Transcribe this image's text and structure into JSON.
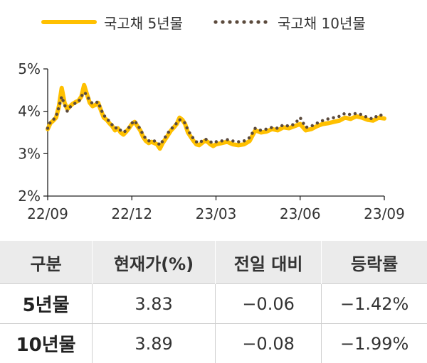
{
  "legend": {
    "series1": "국고채 5년물",
    "series2": "국고채 10년물"
  },
  "colors": {
    "series1": "#FFC000",
    "series2": "#5B4A3C"
  },
  "chart_data": {
    "type": "line",
    "x_ticks": [
      "22/09",
      "22/12",
      "23/03",
      "23/06",
      "23/09"
    ],
    "y_ticks": [
      "2%",
      "3%",
      "4%",
      "5%"
    ],
    "ylim": [
      2,
      5
    ],
    "xlim": [
      0,
      12
    ],
    "grid": false,
    "legend": "top",
    "series": [
      {
        "name": "국고채 5년물",
        "style": "solid",
        "x": [
          0,
          0.1,
          0.2,
          0.3,
          0.4,
          0.5,
          0.6,
          0.7,
          0.8,
          0.9,
          1.0,
          1.1,
          1.2,
          1.3,
          1.4,
          1.5,
          1.6,
          1.7,
          1.8,
          1.9,
          2.0,
          2.1,
          2.2,
          2.3,
          2.4,
          2.5,
          2.6,
          2.7,
          2.8,
          2.9,
          3.0,
          3.1,
          3.2,
          3.3,
          3.4,
          3.5,
          3.6,
          3.7,
          3.8,
          3.9,
          4.0,
          4.1,
          4.2,
          4.3,
          4.4,
          4.5,
          4.6,
          4.7,
          4.8,
          4.9,
          5.0,
          5.1,
          5.2,
          5.3,
          5.4,
          5.5,
          5.6,
          5.7,
          5.8,
          5.9,
          6.0,
          6.2,
          6.4,
          6.6,
          6.8,
          7.0,
          7.2,
          7.4,
          7.6,
          7.8,
          8.0,
          8.2,
          8.4,
          8.6,
          8.8,
          9.0,
          9.2,
          9.4,
          9.6,
          9.8,
          10.0,
          10.2,
          10.4,
          10.6,
          10.8,
          11.0,
          11.2,
          11.4,
          11.6,
          11.8,
          12.0
        ],
        "y": [
          3.58,
          3.72,
          3.78,
          3.85,
          4.12,
          4.55,
          4.2,
          4.05,
          4.12,
          4.18,
          4.22,
          4.25,
          4.35,
          4.62,
          4.4,
          4.2,
          4.12,
          4.15,
          4.2,
          4.02,
          3.85,
          3.8,
          3.72,
          3.65,
          3.55,
          3.6,
          3.5,
          3.45,
          3.52,
          3.6,
          3.7,
          3.75,
          3.65,
          3.55,
          3.4,
          3.3,
          3.25,
          3.28,
          3.25,
          3.22,
          3.12,
          3.25,
          3.35,
          3.45,
          3.55,
          3.62,
          3.7,
          3.85,
          3.8,
          3.7,
          3.5,
          3.4,
          3.3,
          3.22,
          3.2,
          3.25,
          3.3,
          3.28,
          3.22,
          3.18,
          3.22,
          3.25,
          3.28,
          3.22,
          3.2,
          3.22,
          3.3,
          3.55,
          3.5,
          3.52,
          3.58,
          3.55,
          3.62,
          3.6,
          3.65,
          3.7,
          3.55,
          3.58,
          3.65,
          3.7,
          3.72,
          3.75,
          3.78,
          3.85,
          3.82,
          3.88,
          3.85,
          3.8,
          3.78,
          3.85,
          3.83
        ]
      },
      {
        "name": "국고채 10년물",
        "style": "dotted",
        "x": [
          0,
          0.1,
          0.2,
          0.3,
          0.4,
          0.5,
          0.6,
          0.7,
          0.8,
          0.9,
          1.0,
          1.1,
          1.2,
          1.3,
          1.4,
          1.5,
          1.6,
          1.7,
          1.8,
          1.9,
          2.0,
          2.1,
          2.2,
          2.3,
          2.4,
          2.5,
          2.6,
          2.7,
          2.8,
          2.9,
          3.0,
          3.1,
          3.2,
          3.3,
          3.4,
          3.5,
          3.6,
          3.7,
          3.8,
          3.9,
          4.0,
          4.1,
          4.2,
          4.3,
          4.4,
          4.5,
          4.6,
          4.7,
          4.8,
          4.9,
          5.0,
          5.1,
          5.2,
          5.3,
          5.4,
          5.5,
          5.6,
          5.7,
          5.8,
          5.9,
          6.0,
          6.2,
          6.4,
          6.6,
          6.8,
          7.0,
          7.2,
          7.4,
          7.6,
          7.8,
          8.0,
          8.2,
          8.4,
          8.6,
          8.8,
          9.0,
          9.2,
          9.4,
          9.6,
          9.8,
          10.0,
          10.2,
          10.4,
          10.6,
          10.8,
          11.0,
          11.2,
          11.4,
          11.6,
          11.8,
          12.0
        ],
        "y": [
          3.6,
          3.75,
          3.8,
          3.88,
          4.1,
          4.35,
          4.15,
          4.0,
          4.1,
          4.15,
          4.2,
          4.22,
          4.35,
          4.45,
          4.38,
          4.25,
          4.18,
          4.2,
          4.22,
          4.05,
          3.9,
          3.85,
          3.75,
          3.68,
          3.6,
          3.62,
          3.55,
          3.5,
          3.55,
          3.62,
          3.72,
          3.78,
          3.68,
          3.58,
          3.45,
          3.35,
          3.3,
          3.32,
          3.3,
          3.28,
          3.2,
          3.3,
          3.4,
          3.5,
          3.58,
          3.65,
          3.72,
          3.8,
          3.78,
          3.72,
          3.55,
          3.45,
          3.35,
          3.28,
          3.25,
          3.3,
          3.35,
          3.32,
          3.28,
          3.25,
          3.28,
          3.3,
          3.33,
          3.3,
          3.28,
          3.3,
          3.38,
          3.6,
          3.55,
          3.58,
          3.62,
          3.6,
          3.68,
          3.65,
          3.7,
          3.85,
          3.62,
          3.65,
          3.72,
          3.78,
          3.82,
          3.85,
          3.88,
          3.95,
          3.92,
          3.95,
          3.92,
          3.85,
          3.82,
          3.92,
          3.89
        ]
      }
    ]
  },
  "table": {
    "headers": [
      "구분",
      "현재가(%)",
      "전일 대비",
      "등락률"
    ],
    "rows": [
      {
        "label": "5년물",
        "price": "3.83",
        "change": "−0.06",
        "rate": "−1.42%"
      },
      {
        "label": "10년물",
        "price": "3.89",
        "change": "−0.08",
        "rate": "−1.99%"
      }
    ]
  }
}
